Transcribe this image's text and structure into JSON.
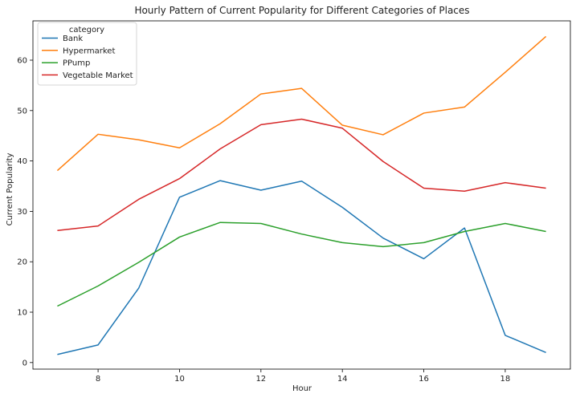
{
  "chart_data": {
    "type": "line",
    "title": "Hourly Pattern of Current Popularity for Different Categories of Places",
    "xlabel": "Hour",
    "ylabel": "Current Popularity",
    "x": [
      7,
      8,
      9,
      10,
      11,
      12,
      13,
      14,
      15,
      16,
      17,
      18,
      19
    ],
    "xlim": [
      6.4,
      19.6
    ],
    "ylim": [
      -1.3,
      67.8
    ],
    "xticks": [
      8,
      10,
      12,
      14,
      16,
      18
    ],
    "yticks": [
      0,
      10,
      20,
      30,
      40,
      50,
      60
    ],
    "grid": false,
    "legend": {
      "title": "category",
      "placement": "top-left"
    },
    "series": [
      {
        "name": "Bank",
        "color": "#1f77b4",
        "values": [
          1.6,
          3.5,
          14.8,
          32.8,
          36.1,
          34.2,
          36.0,
          30.8,
          24.7,
          20.6,
          26.7,
          5.4,
          2.0
        ]
      },
      {
        "name": "Hypermarket",
        "color": "#ff7f0e",
        "values": [
          38.1,
          45.3,
          44.2,
          42.6,
          47.4,
          53.3,
          54.4,
          47.1,
          45.2,
          49.5,
          50.7,
          57.6,
          64.7
        ]
      },
      {
        "name": "PPump",
        "color": "#2ca02c",
        "values": [
          11.2,
          15.2,
          19.9,
          24.9,
          27.8,
          27.6,
          25.5,
          23.8,
          23.0,
          23.8,
          26.0,
          27.6,
          26.0
        ]
      },
      {
        "name": "Vegetable Market",
        "color": "#d62728",
        "values": [
          26.2,
          27.1,
          32.4,
          36.5,
          42.4,
          47.2,
          48.3,
          46.5,
          39.9,
          34.6,
          34.0,
          35.7,
          34.6
        ]
      }
    ]
  }
}
